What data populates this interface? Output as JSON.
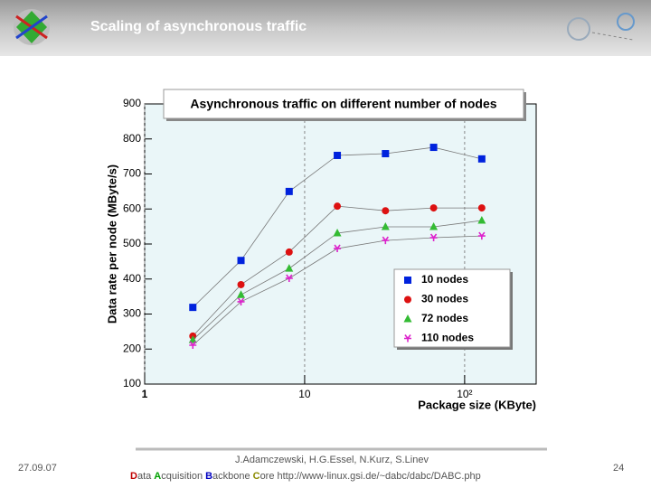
{
  "header": {
    "title": "Scaling of asynchronous traffic"
  },
  "footer": {
    "date": "27.09.07",
    "authors": "J.Adamczewski, H.G.Essel, N.Kurz, S.Linev",
    "project": [
      "Data",
      "Acquisition",
      "Backbone",
      "Core"
    ],
    "url": "http://www-linux.gsi.de/~dabc/dabc/DABC.php",
    "page": "24"
  },
  "chart_data": {
    "type": "line",
    "title": "Asynchronous traffic on different number of nodes",
    "x_label": "Package size (KByte)",
    "y_label": "Data rate per node (MByte/s)",
    "x": [
      2,
      4,
      8,
      16,
      32,
      64,
      128
    ],
    "series": [
      {
        "name": "10 nodes",
        "color": "#0022dd",
        "marker": "square",
        "values": [
          319,
          453,
          650,
          753,
          758,
          776,
          743
        ]
      },
      {
        "name": "30 nodes",
        "color": "#dd1111",
        "marker": "circle",
        "values": [
          237,
          384,
          477,
          608,
          595,
          603,
          603
        ]
      },
      {
        "name": "72 nodes",
        "color": "#33bb33",
        "marker": "triangle",
        "values": [
          226,
          355,
          430,
          531,
          549,
          549,
          567
        ]
      },
      {
        "name": "110 nodes",
        "color": "#dd22cc",
        "marker": "star",
        "values": [
          211,
          335,
          402,
          487,
          510,
          518,
          523
        ]
      }
    ],
    "xlog": true,
    "xlim": [
      1,
      280
    ],
    "xticks": [
      1,
      10,
      {
        "value": 100,
        "label": "10²"
      }
    ],
    "ylim": [
      100,
      900
    ],
    "yticks": [
      100,
      200,
      300,
      400,
      500,
      600,
      700,
      800,
      900
    ],
    "grid": true,
    "legend": "lower right"
  }
}
